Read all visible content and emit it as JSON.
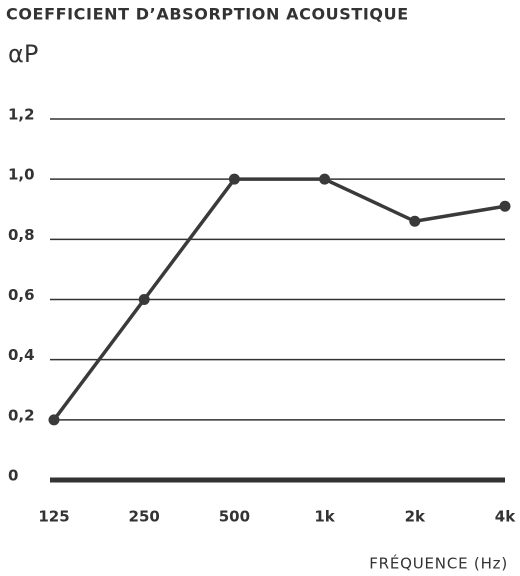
{
  "chart_data": {
    "type": "line",
    "title": "COEFFICIENT D’ABSORPTION ACOUSTIQUE",
    "y_label": "αP",
    "x_label": "FRÉQUENCE (Hz)",
    "categories": [
      "125",
      "250",
      "500",
      "1k",
      "2k",
      "4k"
    ],
    "series": [
      {
        "name": "αP",
        "color": "#3a3a3a",
        "values": [
          0.2,
          0.6,
          1.0,
          1.0,
          0.86,
          0.91
        ]
      }
    ],
    "ylim": [
      0,
      1.2
    ],
    "yticks": [
      0,
      {
        "value": 0.2,
        "label": "0,2"
      },
      {
        "value": 0.4,
        "label": "0,4"
      },
      {
        "value": 0.6,
        "label": "0,6"
      },
      {
        "value": 0.8,
        "label": "0,8"
      },
      {
        "value": 1.0,
        "label": "1,0"
      },
      {
        "value": 1.2,
        "label": "1,2"
      }
    ],
    "grid": true
  }
}
